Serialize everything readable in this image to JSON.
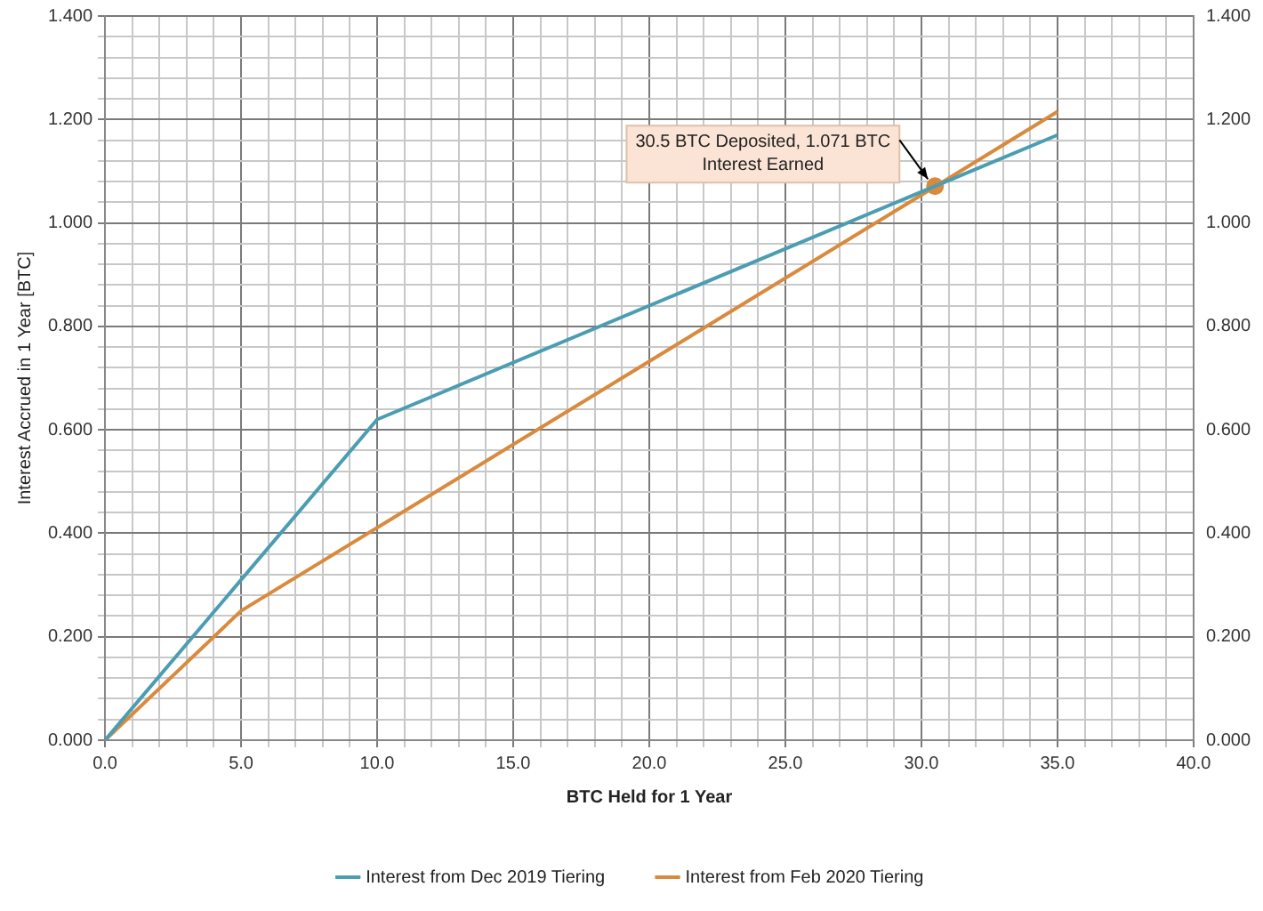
{
  "chart_data": {
    "type": "line",
    "xlabel": "BTC Held for 1 Year",
    "ylabel": "Interest Accrued in 1 Year [BTC]",
    "series": [
      {
        "name": "Interest from Dec 2019 Tiering",
        "color": "#4b9db2",
        "x": [
          0,
          10,
          35
        ],
        "values": [
          0,
          0.62,
          1.17
        ]
      },
      {
        "name": "Interest from Feb 2020 Tiering",
        "color": "#d98a3d",
        "x": [
          0,
          5,
          35
        ],
        "values": [
          0,
          0.25,
          1.215
        ]
      },
      {
        "type": "scatter",
        "color": "#d98a3d",
        "marker": "circle",
        "x": [
          30.5
        ],
        "values": [
          1.071
        ]
      }
    ],
    "annotations": [
      {
        "text": "30.5 BTC Deposited, 1.071 BTC Interest Earned",
        "x": 30.5,
        "y": 1.071
      }
    ],
    "xlim": [
      0,
      40
    ],
    "xticks": [
      {
        "value": 0,
        "label": "0.0"
      },
      {
        "value": 1,
        "label": null
      },
      {
        "value": 2,
        "label": null
      },
      {
        "value": 3,
        "label": null
      },
      {
        "value": 4,
        "label": null
      },
      {
        "value": 5,
        "label": "5.0"
      },
      {
        "value": 6,
        "label": null
      },
      {
        "value": 7,
        "label": null
      },
      {
        "value": 8,
        "label": null
      },
      {
        "value": 9,
        "label": null
      },
      {
        "value": 10,
        "label": "10.0"
      },
      {
        "value": 11,
        "label": null
      },
      {
        "value": 12,
        "label": null
      },
      {
        "value": 13,
        "label": null
      },
      {
        "value": 14,
        "label": null
      },
      {
        "value": 15,
        "label": "15.0"
      },
      {
        "value": 16,
        "label": null
      },
      {
        "value": 17,
        "label": null
      },
      {
        "value": 18,
        "label": null
      },
      {
        "value": 19,
        "label": null
      },
      {
        "value": 20,
        "label": "20.0"
      },
      {
        "value": 21,
        "label": null
      },
      {
        "value": 22,
        "label": null
      },
      {
        "value": 23,
        "label": null
      },
      {
        "value": 24,
        "label": null
      },
      {
        "value": 25,
        "label": "25.0"
      },
      {
        "value": 26,
        "label": null
      },
      {
        "value": 27,
        "label": null
      },
      {
        "value": 28,
        "label": null
      },
      {
        "value": 29,
        "label": null
      },
      {
        "value": 30,
        "label": "30.0"
      },
      {
        "value": 31,
        "label": null
      },
      {
        "value": 32,
        "label": null
      },
      {
        "value": 33,
        "label": null
      },
      {
        "value": 34,
        "label": null
      },
      {
        "value": 35,
        "label": "35.0"
      },
      {
        "value": 36,
        "label": null
      },
      {
        "value": 37,
        "label": null
      },
      {
        "value": 38,
        "label": null
      },
      {
        "value": 39,
        "label": null
      },
      {
        "value": 40,
        "label": "40.0"
      }
    ],
    "ylim": [
      0,
      1.4
    ],
    "yticks": [
      {
        "value": 0,
        "label": "0.000"
      },
      {
        "value": 0.04,
        "label": null
      },
      {
        "value": 0.08,
        "label": null
      },
      {
        "value": 0.12,
        "label": null
      },
      {
        "value": 0.16,
        "label": null
      },
      {
        "value": 0.2,
        "label": "0.200"
      },
      {
        "value": 0.24,
        "label": null
      },
      {
        "value": 0.28,
        "label": null
      },
      {
        "value": 0.32,
        "label": null
      },
      {
        "value": 0.36,
        "label": null
      },
      {
        "value": 0.4,
        "label": "0.400"
      },
      {
        "value": 0.44,
        "label": null
      },
      {
        "value": 0.48,
        "label": null
      },
      {
        "value": 0.52,
        "label": null
      },
      {
        "value": 0.56,
        "label": null
      },
      {
        "value": 0.6,
        "label": "0.600"
      },
      {
        "value": 0.64,
        "label": null
      },
      {
        "value": 0.68,
        "label": null
      },
      {
        "value": 0.72,
        "label": null
      },
      {
        "value": 0.76,
        "label": null
      },
      {
        "value": 0.8,
        "label": "0.800"
      },
      {
        "value": 0.84,
        "label": null
      },
      {
        "value": 0.88,
        "label": null
      },
      {
        "value": 0.92,
        "label": null
      },
      {
        "value": 0.96,
        "label": null
      },
      {
        "value": 1,
        "label": "1.000"
      },
      {
        "value": 1.04,
        "label": null
      },
      {
        "value": 1.08,
        "label": null
      },
      {
        "value": 1.12,
        "label": null
      },
      {
        "value": 1.16,
        "label": null
      },
      {
        "value": 1.2,
        "label": "1.200"
      },
      {
        "value": 1.24,
        "label": null
      },
      {
        "value": 1.28,
        "label": null
      },
      {
        "value": 1.32,
        "label": null
      },
      {
        "value": 1.36,
        "label": null
      },
      {
        "value": 1.4,
        "label": "1.400"
      }
    ],
    "y2lim": [
      0,
      1.4
    ],
    "y2ticks": [
      {
        "value": 0,
        "label": "0.000"
      },
      {
        "value": 0.2,
        "label": "0.200"
      },
      {
        "value": 0.4,
        "label": "0.400"
      },
      {
        "value": 0.6,
        "label": "0.600"
      },
      {
        "value": 0.8,
        "label": "0.800"
      },
      {
        "value": 1,
        "label": "1.000"
      },
      {
        "value": 1.2,
        "label": "1.200"
      },
      {
        "value": 1.4,
        "label": "1.400"
      }
    ],
    "grid": true,
    "legend": "bottom",
    "line_style": "solid"
  }
}
